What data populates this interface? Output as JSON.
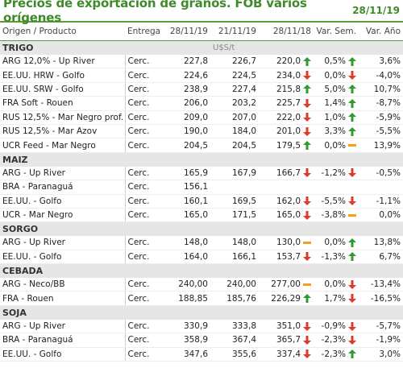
{
  "header": {
    "title": "Precios de exportación de granos. FOB varios orígenes",
    "date": "28/11/19"
  },
  "columns": [
    "Origen / Producto",
    "Entrega",
    "28/11/19",
    "21/11/19",
    "28/11/18",
    "Var. Sem.",
    "Var. Año"
  ],
  "sections": [
    {
      "name": "TRIGO",
      "unit": "U$S/t",
      "rows": [
        {
          "product": "ARG 12,0% - Up River",
          "entrega": "Cerc.",
          "v1": "227,8",
          "v2": "226,7",
          "v3": "220,0",
          "a3": "up",
          "sem": "0,5%",
          "asem": "up",
          "anio": "3,6%"
        },
        {
          "product": "EE.UU. HRW - Golfo",
          "entrega": "Cerc.",
          "v1": "224,6",
          "v2": "224,5",
          "v3": "234,0",
          "a3": "down",
          "sem": "0,0%",
          "asem": "down",
          "anio": "-4,0%"
        },
        {
          "product": "EE.UU. SRW - Golfo",
          "entrega": "Cerc.",
          "v1": "238,9",
          "v2": "227,4",
          "v3": "215,8",
          "a3": "up",
          "sem": "5,0%",
          "asem": "up",
          "anio": "10,7%"
        },
        {
          "product": "FRA Soft - Rouen",
          "entrega": "Cerc.",
          "v1": "206,0",
          "v2": "203,2",
          "v3": "225,7",
          "a3": "down",
          "sem": "1,4%",
          "asem": "up",
          "anio": "-8,7%"
        },
        {
          "product": "RUS 12,5% - Mar Negro prof.",
          "entrega": "Cerc.",
          "v1": "209,0",
          "v2": "207,0",
          "v3": "222,0",
          "a3": "down",
          "sem": "1,0%",
          "asem": "up",
          "anio": "-5,9%"
        },
        {
          "product": "RUS 12,5% - Mar Azov",
          "entrega": "Cerc.",
          "v1": "190,0",
          "v2": "184,0",
          "v3": "201,0",
          "a3": "down",
          "sem": "3,3%",
          "asem": "up",
          "anio": "-5,5%"
        },
        {
          "product": "UCR Feed - Mar Negro",
          "entrega": "Cerc.",
          "v1": "204,5",
          "v2": "204,5",
          "v3": "179,5",
          "a3": "up",
          "sem": "0,0%",
          "asem": "flat",
          "anio": "13,9%"
        }
      ]
    },
    {
      "name": "MAIZ",
      "unit": "",
      "rows": [
        {
          "product": "ARG - Up River",
          "entrega": "Cerc.",
          "v1": "165,9",
          "v2": "167,9",
          "v3": "166,7",
          "a3": "down",
          "sem": "-1,2%",
          "asem": "down",
          "anio": "-0,5%"
        },
        {
          "product": "BRA - Paranaguá",
          "entrega": "Cerc.",
          "v1": "156,1",
          "v2": "",
          "v3": "",
          "a3": "",
          "sem": "",
          "asem": "",
          "anio": ""
        },
        {
          "product": "EE.UU. - Golfo",
          "entrega": "Cerc.",
          "v1": "160,1",
          "v2": "169,5",
          "v3": "162,0",
          "a3": "down",
          "sem": "-5,5%",
          "asem": "down",
          "anio": "-1,1%"
        },
        {
          "product": "UCR - Mar Negro",
          "entrega": "Cerc.",
          "v1": "165,0",
          "v2": "171,5",
          "v3": "165,0",
          "a3": "down",
          "sem": "-3,8%",
          "asem": "flat",
          "anio": "0,0%"
        }
      ]
    },
    {
      "name": "SORGO",
      "unit": "",
      "rows": [
        {
          "product": "ARG - Up River",
          "entrega": "Cerc.",
          "v1": "148,0",
          "v2": "148,0",
          "v3": "130,0",
          "a3": "flat",
          "sem": "0,0%",
          "asem": "up",
          "anio": "13,8%"
        },
        {
          "product": "EE.UU. - Golfo",
          "entrega": "Cerc.",
          "v1": "164,0",
          "v2": "166,1",
          "v3": "153,7",
          "a3": "down",
          "sem": "-1,3%",
          "asem": "up",
          "anio": "6,7%"
        }
      ]
    },
    {
      "name": "CEBADA",
      "unit": "",
      "rows": [
        {
          "product": "ARG - Neco/BB",
          "entrega": "Cerc.",
          "v1": "240,00",
          "v2": "240,00",
          "v3": "277,00",
          "a3": "flat",
          "sem": "0,0%",
          "asem": "down",
          "anio": "-13,4%"
        },
        {
          "product": "FRA - Rouen",
          "entrega": "Cerc.",
          "v1": "188,85",
          "v2": "185,76",
          "v3": "226,29",
          "a3": "up",
          "sem": "1,7%",
          "asem": "down",
          "anio": "-16,5%"
        }
      ]
    },
    {
      "name": "SOJA",
      "unit": "",
      "rows": [
        {
          "product": "ARG - Up River",
          "entrega": "Cerc.",
          "v1": "330,9",
          "v2": "333,8",
          "v3": "351,0",
          "a3": "down",
          "sem": "-0,9%",
          "asem": "down",
          "anio": "-5,7%"
        },
        {
          "product": "BRA - Paranaguá",
          "entrega": "Cerc.",
          "v1": "358,9",
          "v2": "367,4",
          "v3": "365,7",
          "a3": "down",
          "sem": "-2,3%",
          "asem": "down",
          "anio": "-1,9%"
        },
        {
          "product": "EE.UU. - Golfo",
          "entrega": "Cerc.",
          "v1": "347,6",
          "v2": "355,6",
          "v3": "337,4",
          "a3": "down",
          "sem": "-2,3%",
          "asem": "up",
          "anio": "3,0%"
        }
      ]
    }
  ],
  "colors": {
    "accent": "#3f8a2b",
    "up": "#2f9a2f",
    "down": "#e03a2a",
    "flat": "#f0a020"
  }
}
